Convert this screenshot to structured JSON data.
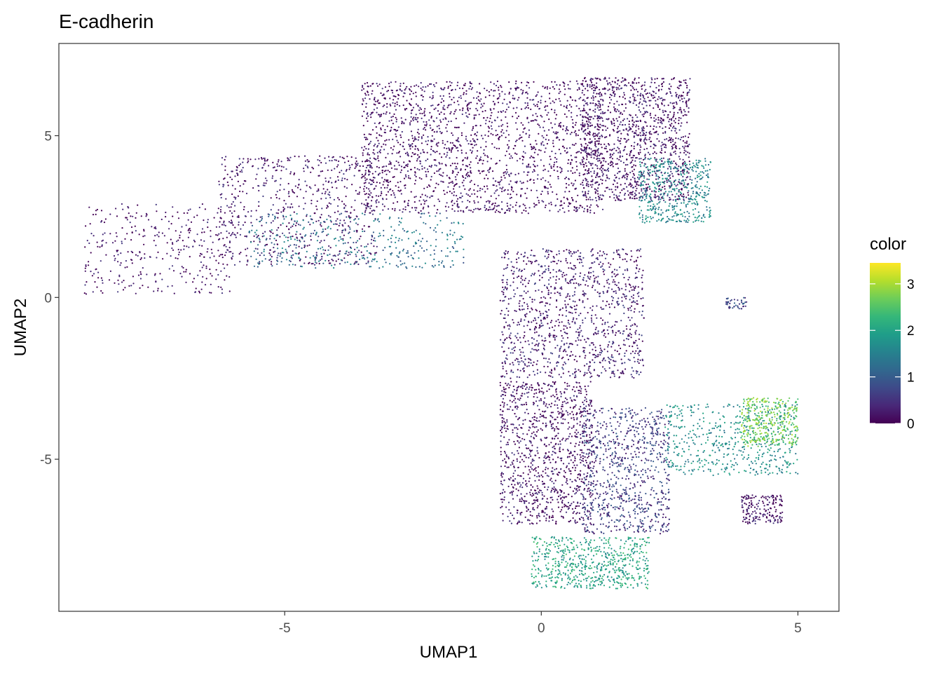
{
  "chart_data": {
    "type": "scatter",
    "title": "E-cadherin",
    "xlabel": "UMAP1",
    "ylabel": "UMAP2",
    "xlim": [
      -9.4,
      5.8
    ],
    "ylim": [
      -9.7,
      7.85
    ],
    "x_ticks": [
      -5,
      0,
      5
    ],
    "y_ticks": [
      -5,
      0,
      5
    ],
    "x_tick_labels": [
      "-5",
      "0",
      "5"
    ],
    "y_tick_labels": [
      "-5",
      "0",
      "5"
    ],
    "grid": false,
    "legend": {
      "title": "color",
      "placement": "right",
      "colormap": "viridis",
      "range": [
        0,
        3.45
      ],
      "ticks": [
        0,
        1,
        2,
        3
      ],
      "tick_labels": [
        "0",
        "1",
        "2",
        "3"
      ],
      "stops": [
        "#440154",
        "#482878",
        "#3E4A89",
        "#31688E",
        "#26828E",
        "#1F9E89",
        "#35B779",
        "#6DCD59",
        "#B4DE2C",
        "#FDE725"
      ]
    },
    "regions": [
      {
        "name": "upper-left arm tip",
        "x": [
          -8.9,
          -6.0
        ],
        "y": [
          0.1,
          2.9
        ],
        "expression": 0.15,
        "n": 360
      },
      {
        "name": "upper-left arm body",
        "x": [
          -6.3,
          -3.2
        ],
        "y": [
          1.0,
          4.4
        ],
        "expression": 0.2,
        "n": 650
      },
      {
        "name": "upper-left arm lower edge",
        "x": [
          -5.7,
          -1.5
        ],
        "y": [
          0.9,
          2.6
        ],
        "expression": 1.3,
        "n": 380
      },
      {
        "name": "upper mass",
        "x": [
          -3.5,
          1.2
        ],
        "y": [
          2.6,
          6.7
        ],
        "expression": 0.1,
        "n": 1900
      },
      {
        "name": "upper right mass",
        "x": [
          0.8,
          2.9
        ],
        "y": [
          3.0,
          6.8
        ],
        "expression": 0.15,
        "n": 1200
      },
      {
        "name": "upper right edge",
        "x": [
          1.9,
          3.3
        ],
        "y": [
          2.3,
          4.3
        ],
        "expression": 1.6,
        "n": 460
      },
      {
        "name": "central stem",
        "x": [
          -0.8,
          2.0
        ],
        "y": [
          -2.5,
          1.5
        ],
        "expression": 0.3,
        "n": 1150
      },
      {
        "name": "small isolated cluster",
        "x": [
          3.6,
          4.0
        ],
        "y": [
          -0.35,
          0.0
        ],
        "expression": 0.7,
        "n": 45
      },
      {
        "name": "lower left mass",
        "x": [
          -0.8,
          1.0
        ],
        "y": [
          -7.0,
          -2.6
        ],
        "expression": 0.15,
        "n": 1050
      },
      {
        "name": "lower middle",
        "x": [
          0.8,
          2.5
        ],
        "y": [
          -7.3,
          -3.4
        ],
        "expression": 0.6,
        "n": 850
      },
      {
        "name": "lower right branch",
        "x": [
          2.4,
          5.0
        ],
        "y": [
          -5.5,
          -3.3
        ],
        "expression": 1.7,
        "n": 520
      },
      {
        "name": "lower right tip",
        "x": [
          3.9,
          5.0
        ],
        "y": [
          -4.6,
          -3.1
        ],
        "expression": 2.7,
        "n": 360
      },
      {
        "name": "lower right small lobe",
        "x": [
          3.9,
          4.7
        ],
        "y": [
          -7.0,
          -6.1
        ],
        "expression": 0.15,
        "n": 180
      },
      {
        "name": "bottom arc",
        "x": [
          -0.2,
          2.1
        ],
        "y": [
          -9.0,
          -7.4
        ],
        "expression": 2.0,
        "n": 620
      }
    ]
  }
}
